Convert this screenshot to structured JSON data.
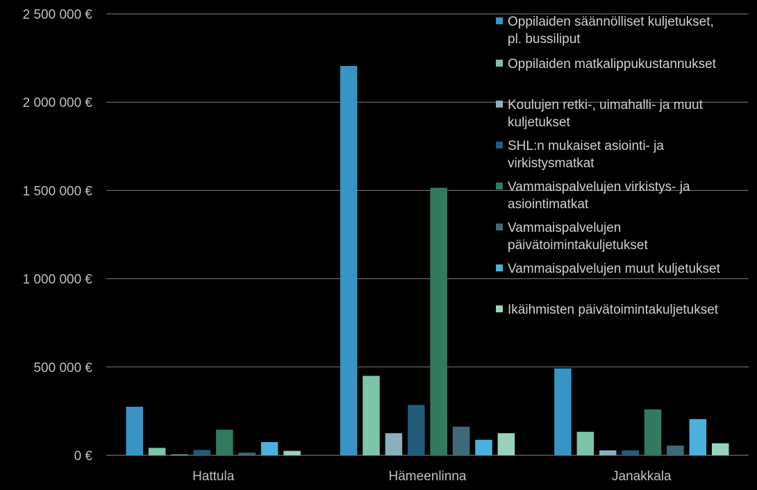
{
  "chart_data": {
    "type": "bar",
    "title": "",
    "xlabel": "",
    "ylabel": "",
    "ylim": [
      0,
      2500000
    ],
    "y_ticks": [
      0,
      500000,
      1000000,
      1500000,
      2000000,
      2500000
    ],
    "y_tick_labels": [
      "0 €",
      "500 000 €",
      "1 000 000 €",
      "1 500 000 €",
      "2 000 000 €",
      "2 500 000 €"
    ],
    "grid": true,
    "legend_position": "top-right",
    "categories": [
      "Hattula",
      "Hämeenlinna",
      "Janakkala"
    ],
    "series": [
      {
        "name": "Oppilaiden säännölliset kuljetukset, pl. bussiliput",
        "legend_lines": [
          "Oppilaiden säännölliset kuljetukset,",
          "pl. bussiliput"
        ],
        "color": "#3794c4",
        "values": [
          275000,
          2205000,
          492000
        ]
      },
      {
        "name": "Oppilaiden matkalippukustannukset",
        "legend_lines": [
          "Oppilaiden matkalippukustannukset"
        ],
        "color": "#7cc4a8",
        "values": [
          42000,
          450000,
          133000
        ]
      },
      {
        "name": "Koulujen retki-, uimahalli- ja muut kuljetukset",
        "legend_lines": [
          "Koulujen retki-, uimahalli- ja muut",
          "kuljetukset"
        ],
        "color": "#89b0bf",
        "values": [
          5000,
          125000,
          28000
        ]
      },
      {
        "name": "SHL:n mukaiset asiointi- ja virkistysmatkat",
        "legend_lines": [
          "SHL:n mukaiset asiointi- ja",
          "virkistysmatkat"
        ],
        "color": "#215d7a",
        "values": [
          30000,
          285000,
          28000
        ]
      },
      {
        "name": "Vammaispalvelujen virkistys- ja asiointimatkat",
        "legend_lines": [
          "Vammaispalvelujen virkistys- ja",
          "asiointimatkat"
        ],
        "color": "#327a5f",
        "values": [
          145000,
          1515000,
          260000
        ]
      },
      {
        "name": "Vammaispalvelujen päivätoimintakuljetukset",
        "legend_lines": [
          "Vammaispalvelujen",
          "päivätoimintakuljetukset"
        ],
        "color": "#3f6977",
        "values": [
          15000,
          162000,
          55000
        ]
      },
      {
        "name": "Vammaispalvelujen muut kuljetukset",
        "legend_lines": [
          "Vammaispalvelujen muut kuljetukset"
        ],
        "color": "#4ab1dc",
        "values": [
          75000,
          88000,
          205000
        ]
      },
      {
        "name": "Ikäihmisten päivätoimintakuljetukset",
        "legend_lines": [
          "Ikäihmisten päivätoimintakuljetukset"
        ],
        "color": "#98d2bb",
        "values": [
          25000,
          125000,
          68000
        ]
      }
    ]
  }
}
